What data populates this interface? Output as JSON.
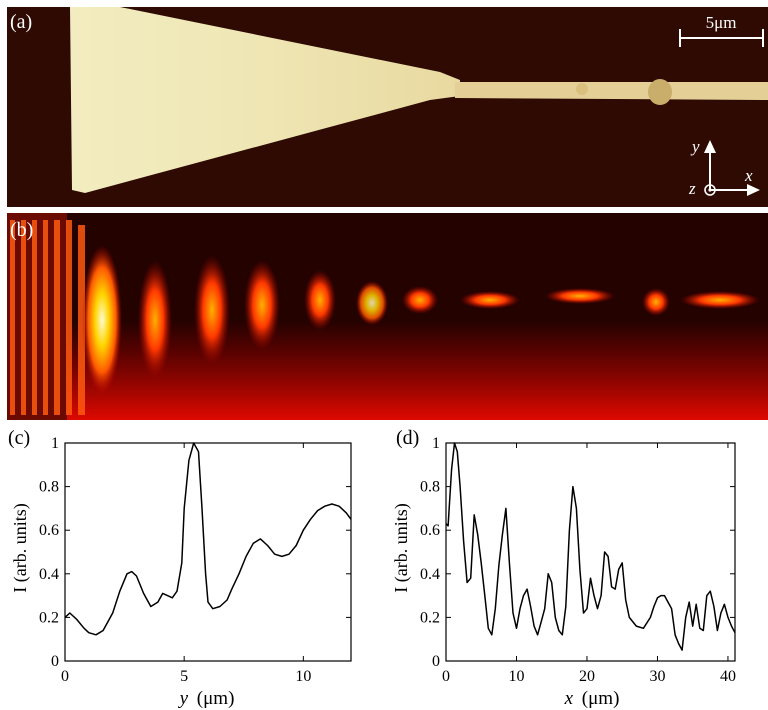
{
  "panels": {
    "a": {
      "label": "(a)",
      "scalebar": "5μm",
      "axes": {
        "y": "y",
        "x": "x",
        "z": "z"
      }
    },
    "b": {
      "label": "(b)"
    },
    "c": {
      "label": "(c)"
    },
    "d": {
      "label": "(d)"
    }
  },
  "chart_data": [
    {
      "type": "line",
      "panel": "(c)",
      "xlabel_var": "y",
      "xlabel_unit": "(μm)",
      "ylabel": "I (arb. units)",
      "xlim": [
        0,
        12
      ],
      "ylim": [
        0,
        1
      ],
      "xticks": [
        0,
        5,
        10
      ],
      "yticks": [
        0,
        0.2,
        0.4,
        0.6,
        0.8,
        1
      ],
      "ytick_labels": [
        "0",
        "0.2",
        "0.4",
        "0.6",
        "0.8",
        "1"
      ],
      "grid": false,
      "series": [
        {
          "x": [
            0,
            0.2,
            0.5,
            0.8,
            1.0,
            1.3,
            1.6,
            2.0,
            2.3,
            2.6,
            2.8,
            3.0,
            3.3,
            3.6,
            3.9,
            4.1,
            4.3,
            4.5,
            4.7,
            4.9,
            5.0,
            5.2,
            5.4,
            5.6,
            5.75,
            5.9,
            6.0,
            6.2,
            6.5,
            6.8,
            7.0,
            7.3,
            7.6,
            7.9,
            8.2,
            8.5,
            8.8,
            9.1,
            9.4,
            9.7,
            10.0,
            10.3,
            10.6,
            10.9,
            11.2,
            11.5,
            11.8,
            12.0
          ],
          "y": [
            0.2,
            0.22,
            0.19,
            0.15,
            0.13,
            0.12,
            0.14,
            0.22,
            0.32,
            0.4,
            0.41,
            0.39,
            0.31,
            0.25,
            0.27,
            0.31,
            0.3,
            0.29,
            0.32,
            0.45,
            0.7,
            0.92,
            1.0,
            0.96,
            0.7,
            0.4,
            0.27,
            0.24,
            0.25,
            0.28,
            0.33,
            0.4,
            0.48,
            0.54,
            0.56,
            0.53,
            0.49,
            0.48,
            0.49,
            0.53,
            0.6,
            0.65,
            0.69,
            0.71,
            0.72,
            0.71,
            0.68,
            0.65
          ]
        }
      ]
    },
    {
      "type": "line",
      "panel": "(d)",
      "xlabel_var": "x",
      "xlabel_unit": "(μm)",
      "ylabel": "I (arb. units)",
      "xlim": [
        0,
        41
      ],
      "ylim": [
        0,
        1
      ],
      "xticks": [
        0,
        10,
        20,
        30,
        40
      ],
      "yticks": [
        0,
        0.2,
        0.4,
        0.6,
        0.8,
        1
      ],
      "ytick_labels": [
        "0",
        "0.2",
        "0.4",
        "0.6",
        "0.8",
        "1"
      ],
      "grid": false,
      "series": [
        {
          "x": [
            0,
            0.3,
            0.8,
            1.2,
            1.6,
            2.0,
            2.5,
            3.0,
            3.5,
            4.0,
            4.5,
            5.0,
            5.5,
            6.0,
            6.5,
            7.0,
            7.5,
            8.0,
            8.5,
            9.0,
            9.5,
            10.0,
            10.5,
            11.0,
            11.5,
            12.0,
            12.5,
            13.0,
            13.5,
            14.0,
            14.5,
            15.0,
            15.5,
            16.0,
            16.5,
            17.0,
            17.5,
            18.0,
            18.5,
            19.0,
            19.5,
            20.0,
            20.5,
            21.0,
            21.5,
            22.0,
            22.5,
            23.0,
            23.5,
            24.0,
            24.5,
            25.0,
            25.5,
            26.0,
            27.0,
            28.0,
            29.0,
            29.5,
            30.0,
            30.5,
            31.0,
            31.5,
            32.0,
            32.5,
            33.0,
            33.5,
            34.0,
            34.5,
            35.0,
            35.5,
            36.0,
            36.5,
            37.0,
            37.5,
            38.0,
            38.5,
            39.0,
            39.5,
            40.0,
            40.5,
            41.0
          ],
          "y": [
            0.63,
            0.62,
            0.88,
            1.0,
            0.96,
            0.8,
            0.55,
            0.36,
            0.38,
            0.67,
            0.58,
            0.45,
            0.3,
            0.15,
            0.12,
            0.24,
            0.44,
            0.58,
            0.7,
            0.45,
            0.22,
            0.15,
            0.24,
            0.3,
            0.33,
            0.25,
            0.16,
            0.12,
            0.18,
            0.24,
            0.4,
            0.36,
            0.2,
            0.14,
            0.12,
            0.25,
            0.6,
            0.8,
            0.7,
            0.42,
            0.22,
            0.24,
            0.38,
            0.3,
            0.24,
            0.3,
            0.5,
            0.48,
            0.34,
            0.33,
            0.42,
            0.45,
            0.28,
            0.2,
            0.16,
            0.15,
            0.2,
            0.25,
            0.29,
            0.3,
            0.3,
            0.27,
            0.24,
            0.12,
            0.08,
            0.05,
            0.2,
            0.27,
            0.16,
            0.26,
            0.15,
            0.14,
            0.3,
            0.32,
            0.25,
            0.14,
            0.22,
            0.26,
            0.2,
            0.16,
            0.13
          ]
        }
      ]
    }
  ]
}
